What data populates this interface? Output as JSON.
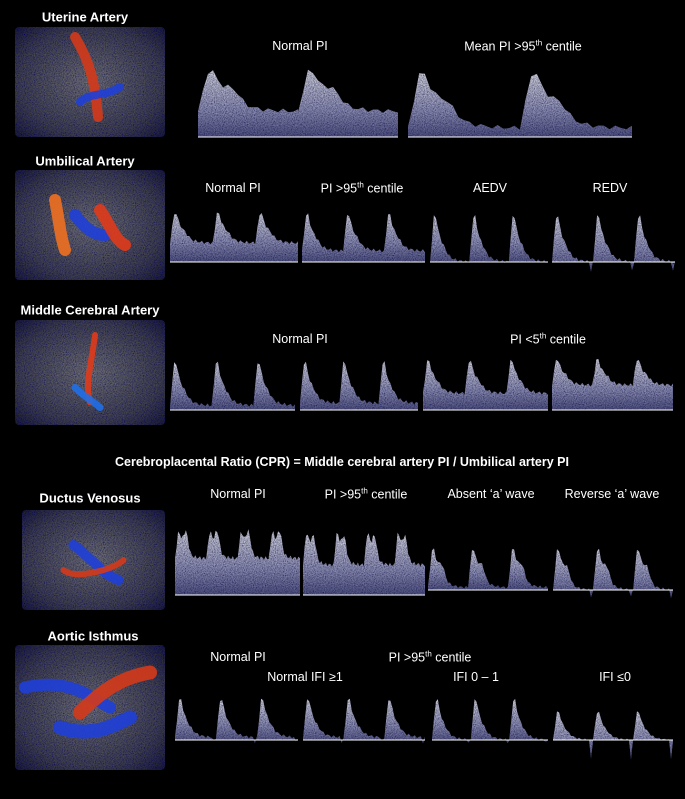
{
  "sections": [
    {
      "title": "Uterine Artery",
      "labels": [
        {
          "text": "Normal PI"
        },
        {
          "text": "Mean PI  >95",
          "sup": "th",
          "tail": " centile"
        }
      ]
    },
    {
      "title": "Umbilical Artery",
      "labels": [
        {
          "text": "Normal PI"
        },
        {
          "text": "PI  >95",
          "sup": "th",
          "tail": " centile"
        },
        {
          "text": "AEDV"
        },
        {
          "text": "REDV"
        }
      ]
    },
    {
      "title": "Middle Cerebral Artery",
      "labels": [
        {
          "text": "Normal PI"
        },
        {
          "text": "PI  <5",
          "sup": "th",
          "tail": " centile"
        }
      ]
    },
    {
      "title": "Ductus Venosus",
      "labels": [
        {
          "text": "Normal PI"
        },
        {
          "text": "PI  >95",
          "sup": "th",
          "tail": " centile"
        },
        {
          "text": "Absent ‘a’ wave"
        },
        {
          "text": "Reverse ‘a’ wave"
        }
      ]
    },
    {
      "title": "Aortic Isthmus",
      "labels": [
        {
          "text": "Normal PI"
        },
        {
          "text": "PI  >95",
          "sup": "th",
          "tail": " centile"
        },
        {
          "text": "Normal IFI ≥1"
        },
        {
          "text": "IFI 0 – 1"
        },
        {
          "text": "IFI ≤0"
        }
      ]
    }
  ],
  "cpr": "Cerebroplacental Ratio (CPR) = Middle cerebral artery PI / Umbilical artery PI"
}
